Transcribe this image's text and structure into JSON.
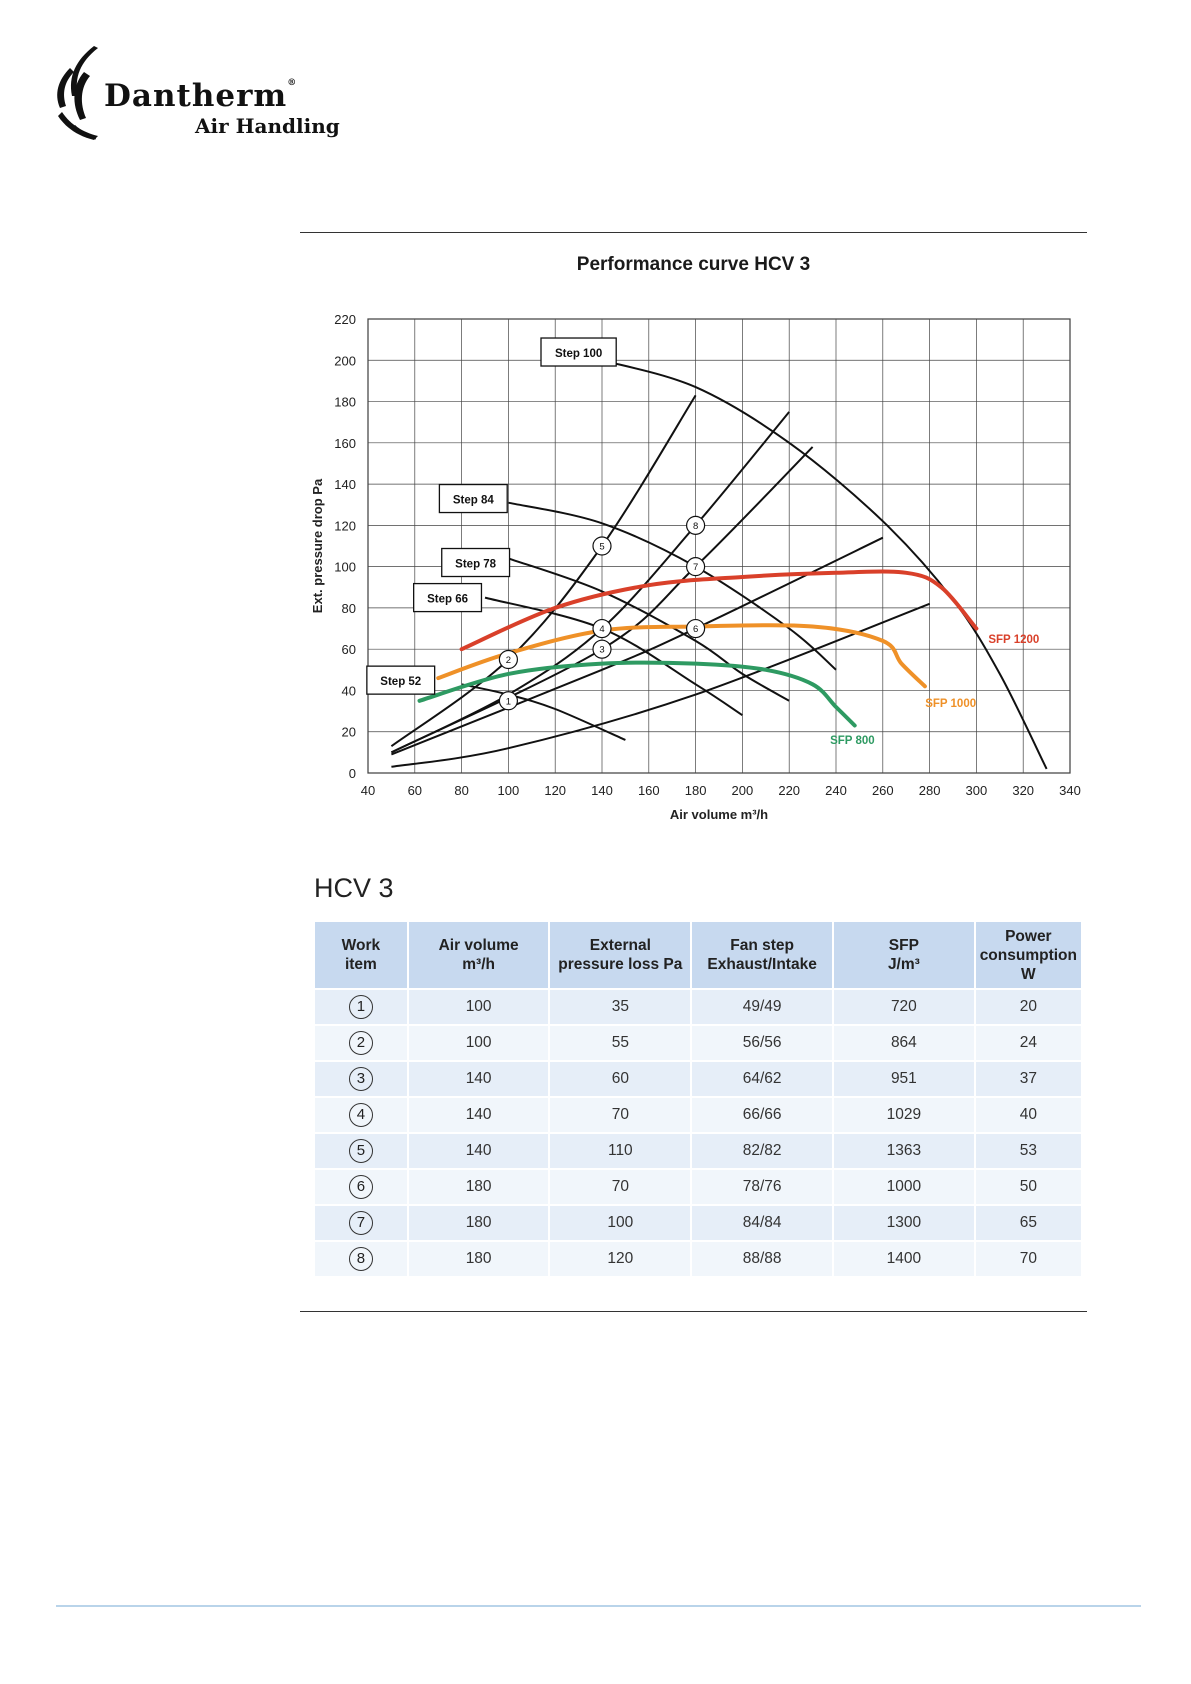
{
  "brand": {
    "name": "Dantherm",
    "registered": "®",
    "subtitle": "Air Handling"
  },
  "chart_title": "Performance curve HCV 3",
  "chart_data": {
    "type": "line",
    "title": "Performance curve HCV 3",
    "xlabel": "Air volume m³/h",
    "ylabel": "Ext. pressure drop Pa",
    "xlim": [
      40,
      340
    ],
    "ylim": [
      0,
      220
    ],
    "xticks": [
      40,
      60,
      80,
      100,
      120,
      140,
      160,
      180,
      200,
      220,
      240,
      260,
      280,
      300,
      320,
      340
    ],
    "yticks": [
      0,
      20,
      40,
      60,
      80,
      100,
      120,
      140,
      160,
      180,
      200,
      220
    ],
    "grid": true,
    "fan_curves": [
      {
        "name": "Step 100",
        "x": [
          140,
          180,
          220,
          260,
          290,
          310,
          330
        ],
        "y": [
          200,
          187,
          160,
          122,
          84,
          48,
          2
        ]
      },
      {
        "name": "Step 84",
        "x": [
          100,
          140,
          180,
          220,
          240
        ],
        "y": [
          131,
          121,
          100,
          70,
          50
        ]
      },
      {
        "name": "Step 78",
        "x": [
          100,
          140,
          180,
          200,
          220
        ],
        "y": [
          104,
          88,
          64,
          48,
          35
        ]
      },
      {
        "name": "Step 66",
        "x": [
          90,
          140,
          180,
          200
        ],
        "y": [
          85,
          70,
          43,
          28
        ]
      },
      {
        "name": "Step 52",
        "x": [
          80,
          100,
          120,
          150
        ],
        "y": [
          43,
          38,
          31,
          16
        ]
      }
    ],
    "system_curves": [
      {
        "x": [
          50,
          100,
          140,
          180
        ],
        "y": [
          13,
          55,
          110,
          183
        ]
      },
      {
        "x": [
          50,
          100,
          140,
          180,
          220
        ],
        "y": [
          10,
          38,
          70,
          120,
          175
        ]
      },
      {
        "x": [
          50,
          140,
          180,
          230
        ],
        "y": [
          10,
          60,
          100,
          158
        ]
      },
      {
        "x": [
          50,
          140,
          180,
          260
        ],
        "y": [
          9,
          50,
          70,
          114
        ]
      },
      {
        "x": [
          50,
          100,
          180,
          280
        ],
        "y": [
          3,
          12,
          38,
          82
        ]
      }
    ],
    "sfp_curves": [
      {
        "name": "SFP 1200",
        "color": "#d9402a",
        "x": [
          80,
          120,
          160,
          200,
          240,
          270,
          285,
          300
        ],
        "y": [
          60,
          80,
          91,
          95,
          97,
          97,
          90,
          70
        ]
      },
      {
        "name": "SFP 1000",
        "color": "#ef9128",
        "x": [
          70,
          100,
          140,
          180,
          230,
          260,
          268,
          278
        ],
        "y": [
          46,
          58,
          69,
          71,
          71,
          64,
          53,
          42
        ]
      },
      {
        "name": "SFP 800",
        "color": "#2e9a62",
        "x": [
          62,
          100,
          140,
          180,
          210,
          230,
          240,
          248
        ],
        "y": [
          35,
          48,
          53,
          53,
          50,
          43,
          32,
          23
        ]
      }
    ],
    "work_points": [
      {
        "label": "1",
        "x": 100,
        "y": 35
      },
      {
        "label": "2",
        "x": 100,
        "y": 55
      },
      {
        "label": "3",
        "x": 140,
        "y": 60
      },
      {
        "label": "4",
        "x": 140,
        "y": 70
      },
      {
        "label": "5",
        "x": 140,
        "y": 110
      },
      {
        "label": "6",
        "x": 180,
        "y": 70
      },
      {
        "label": "7",
        "x": 180,
        "y": 100
      },
      {
        "label": "8",
        "x": 180,
        "y": 120
      }
    ],
    "step_labels": [
      {
        "text": "Step 100",
        "x": 130,
        "y": 204
      },
      {
        "text": "Step 84",
        "x": 85,
        "y": 133
      },
      {
        "text": "Step 78",
        "x": 86,
        "y": 102
      },
      {
        "text": "Step 66",
        "x": 74,
        "y": 85
      },
      {
        "text": "Step 52",
        "x": 54,
        "y": 45
      }
    ],
    "sfp_labels": [
      {
        "text": "SFP 1200",
        "color": "#d9402a",
        "x": 316,
        "y": 65
      },
      {
        "text": "SFP 1000",
        "color": "#ef9128",
        "x": 289,
        "y": 34
      },
      {
        "text": "SFP 800",
        "color": "#2e9a62",
        "x": 247,
        "y": 16
      }
    ]
  },
  "section_title": "HCV 3",
  "table": {
    "headers": [
      [
        "Work",
        "item"
      ],
      [
        "Air volume",
        "m³/h"
      ],
      [
        "External",
        "pressure loss Pa"
      ],
      [
        "Fan step",
        "Exhaust/Intake"
      ],
      [
        "SFP",
        "J/m³"
      ],
      [
        "Power",
        "consumption W"
      ]
    ],
    "rows": [
      [
        "1",
        "100",
        "35",
        "49/49",
        "720",
        "20"
      ],
      [
        "2",
        "100",
        "55",
        "56/56",
        "864",
        "24"
      ],
      [
        "3",
        "140",
        "60",
        "64/62",
        "951",
        "37"
      ],
      [
        "4",
        "140",
        "70",
        "66/66",
        "1029",
        "40"
      ],
      [
        "5",
        "140",
        "110",
        "82/82",
        "1363",
        "53"
      ],
      [
        "6",
        "180",
        "70",
        "78/76",
        "1000",
        "50"
      ],
      [
        "7",
        "180",
        "100",
        "84/84",
        "1300",
        "65"
      ],
      [
        "8",
        "180",
        "120",
        "88/88",
        "1400",
        "70"
      ]
    ]
  }
}
